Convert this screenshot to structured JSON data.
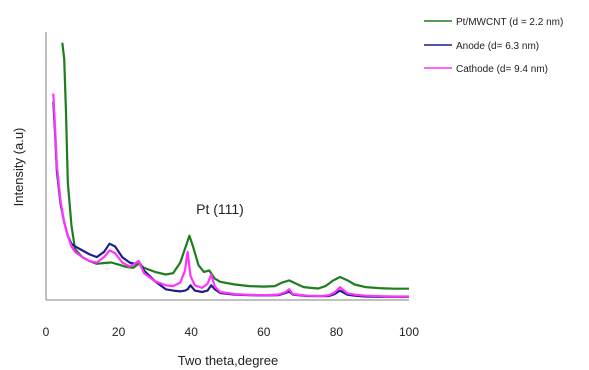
{
  "chart_data": {
    "type": "line",
    "title": "",
    "xlabel": "Two theta,degree",
    "ylabel": "Intensity (a.u)",
    "xlim": [
      0,
      100
    ],
    "ylim": [
      0,
      100
    ],
    "xticks": [
      0,
      20,
      40,
      60,
      80,
      100
    ],
    "xtick_labels": [
      "0",
      "20",
      "40",
      "60",
      "80",
      "100"
    ],
    "y_tick_labels_shown": false,
    "grid": false,
    "legend_position": "top-right",
    "annotations": [
      {
        "text": "Pt (111)",
        "x": 41,
        "y": 33
      }
    ],
    "series": [
      {
        "name": "Pt/MWCNT (d = 2.2 nm)",
        "color": "#1e7d1e",
        "x": [
          4.5,
          5,
          5.5,
          6,
          7,
          8,
          10,
          12,
          14,
          16,
          18,
          20,
          22,
          24,
          25.5,
          27,
          30,
          33,
          35,
          37,
          38.5,
          39.5,
          40.5,
          42,
          43.5,
          45,
          46.5,
          48,
          52,
          56,
          60,
          63,
          65,
          67,
          69,
          71,
          73,
          75,
          77,
          79,
          81,
          83,
          85,
          88,
          92,
          96,
          100
        ],
        "values": [
          96,
          90,
          70,
          44,
          28,
          19,
          16,
          14.5,
          13.5,
          13.8,
          14,
          13.2,
          12.4,
          12,
          13.5,
          12,
          10.5,
          9.5,
          10,
          14,
          20,
          24,
          20,
          13,
          10.5,
          11,
          8,
          6.8,
          5.8,
          5.2,
          5,
          5.2,
          6.5,
          7.3,
          6,
          4.8,
          4.5,
          4.3,
          5.2,
          7.2,
          8.6,
          7.4,
          5.8,
          4.8,
          4.4,
          4.2,
          4.2
        ]
      },
      {
        "name": "Anode (d= 6.3 nm)",
        "color": "#1f1f8c",
        "x": [
          2,
          2.5,
          3,
          4,
          5,
          6,
          7,
          8,
          10,
          12,
          14,
          16,
          17.5,
          19,
          21,
          23,
          24.5,
          25.5,
          27,
          30,
          33,
          35,
          37,
          38.3,
          39,
          39.8,
          41,
          43,
          44.5,
          45.5,
          46.5,
          48,
          52,
          56,
          60,
          64,
          66,
          67,
          68,
          72,
          76,
          78,
          79.5,
          81,
          83,
          85,
          88,
          92,
          96,
          100
        ],
        "values": [
          74,
          62,
          48,
          36,
          29,
          24,
          21,
          20,
          18.5,
          17,
          16,
          18,
          21,
          20,
          16,
          14,
          13.5,
          14.5,
          11,
          7,
          4,
          3.5,
          3.2,
          3.5,
          4,
          5.5,
          3.5,
          3,
          3.5,
          5.5,
          4,
          2.6,
          2,
          1.8,
          1.7,
          1.8,
          2.6,
          3.2,
          2,
          1.5,
          1.4,
          1.5,
          2.2,
          3.5,
          2,
          1.6,
          1.3,
          1.2,
          1.2,
          1.2
        ]
      },
      {
        "name": "Cathode (d= 9.4 nm)",
        "color": "#ff33ff",
        "x": [
          2,
          2.5,
          3,
          4,
          5,
          6,
          7,
          8,
          10,
          12,
          14,
          16,
          17.5,
          19,
          21,
          23,
          24.5,
          25.5,
          27,
          30,
          33,
          35,
          37,
          38.3,
          39,
          39.8,
          41,
          43,
          44.5,
          45.5,
          46.5,
          48,
          52,
          56,
          60,
          64,
          66,
          67,
          68,
          72,
          76,
          78,
          79.5,
          81,
          83,
          85,
          88,
          92,
          96,
          100
        ],
        "values": [
          77,
          64,
          50,
          37,
          29,
          24,
          20,
          18,
          16,
          14.5,
          14,
          16,
          18.5,
          17.5,
          14,
          12.5,
          13.5,
          14.5,
          10,
          7,
          5.5,
          5.2,
          6.5,
          11,
          18,
          9,
          5.5,
          4.5,
          6,
          9.5,
          5,
          3,
          2.2,
          1.9,
          1.8,
          2,
          3,
          4,
          2.2,
          1.6,
          1.5,
          1.8,
          2.8,
          4.8,
          2.5,
          2,
          1.6,
          1.4,
          1.3,
          1.3
        ]
      }
    ]
  }
}
